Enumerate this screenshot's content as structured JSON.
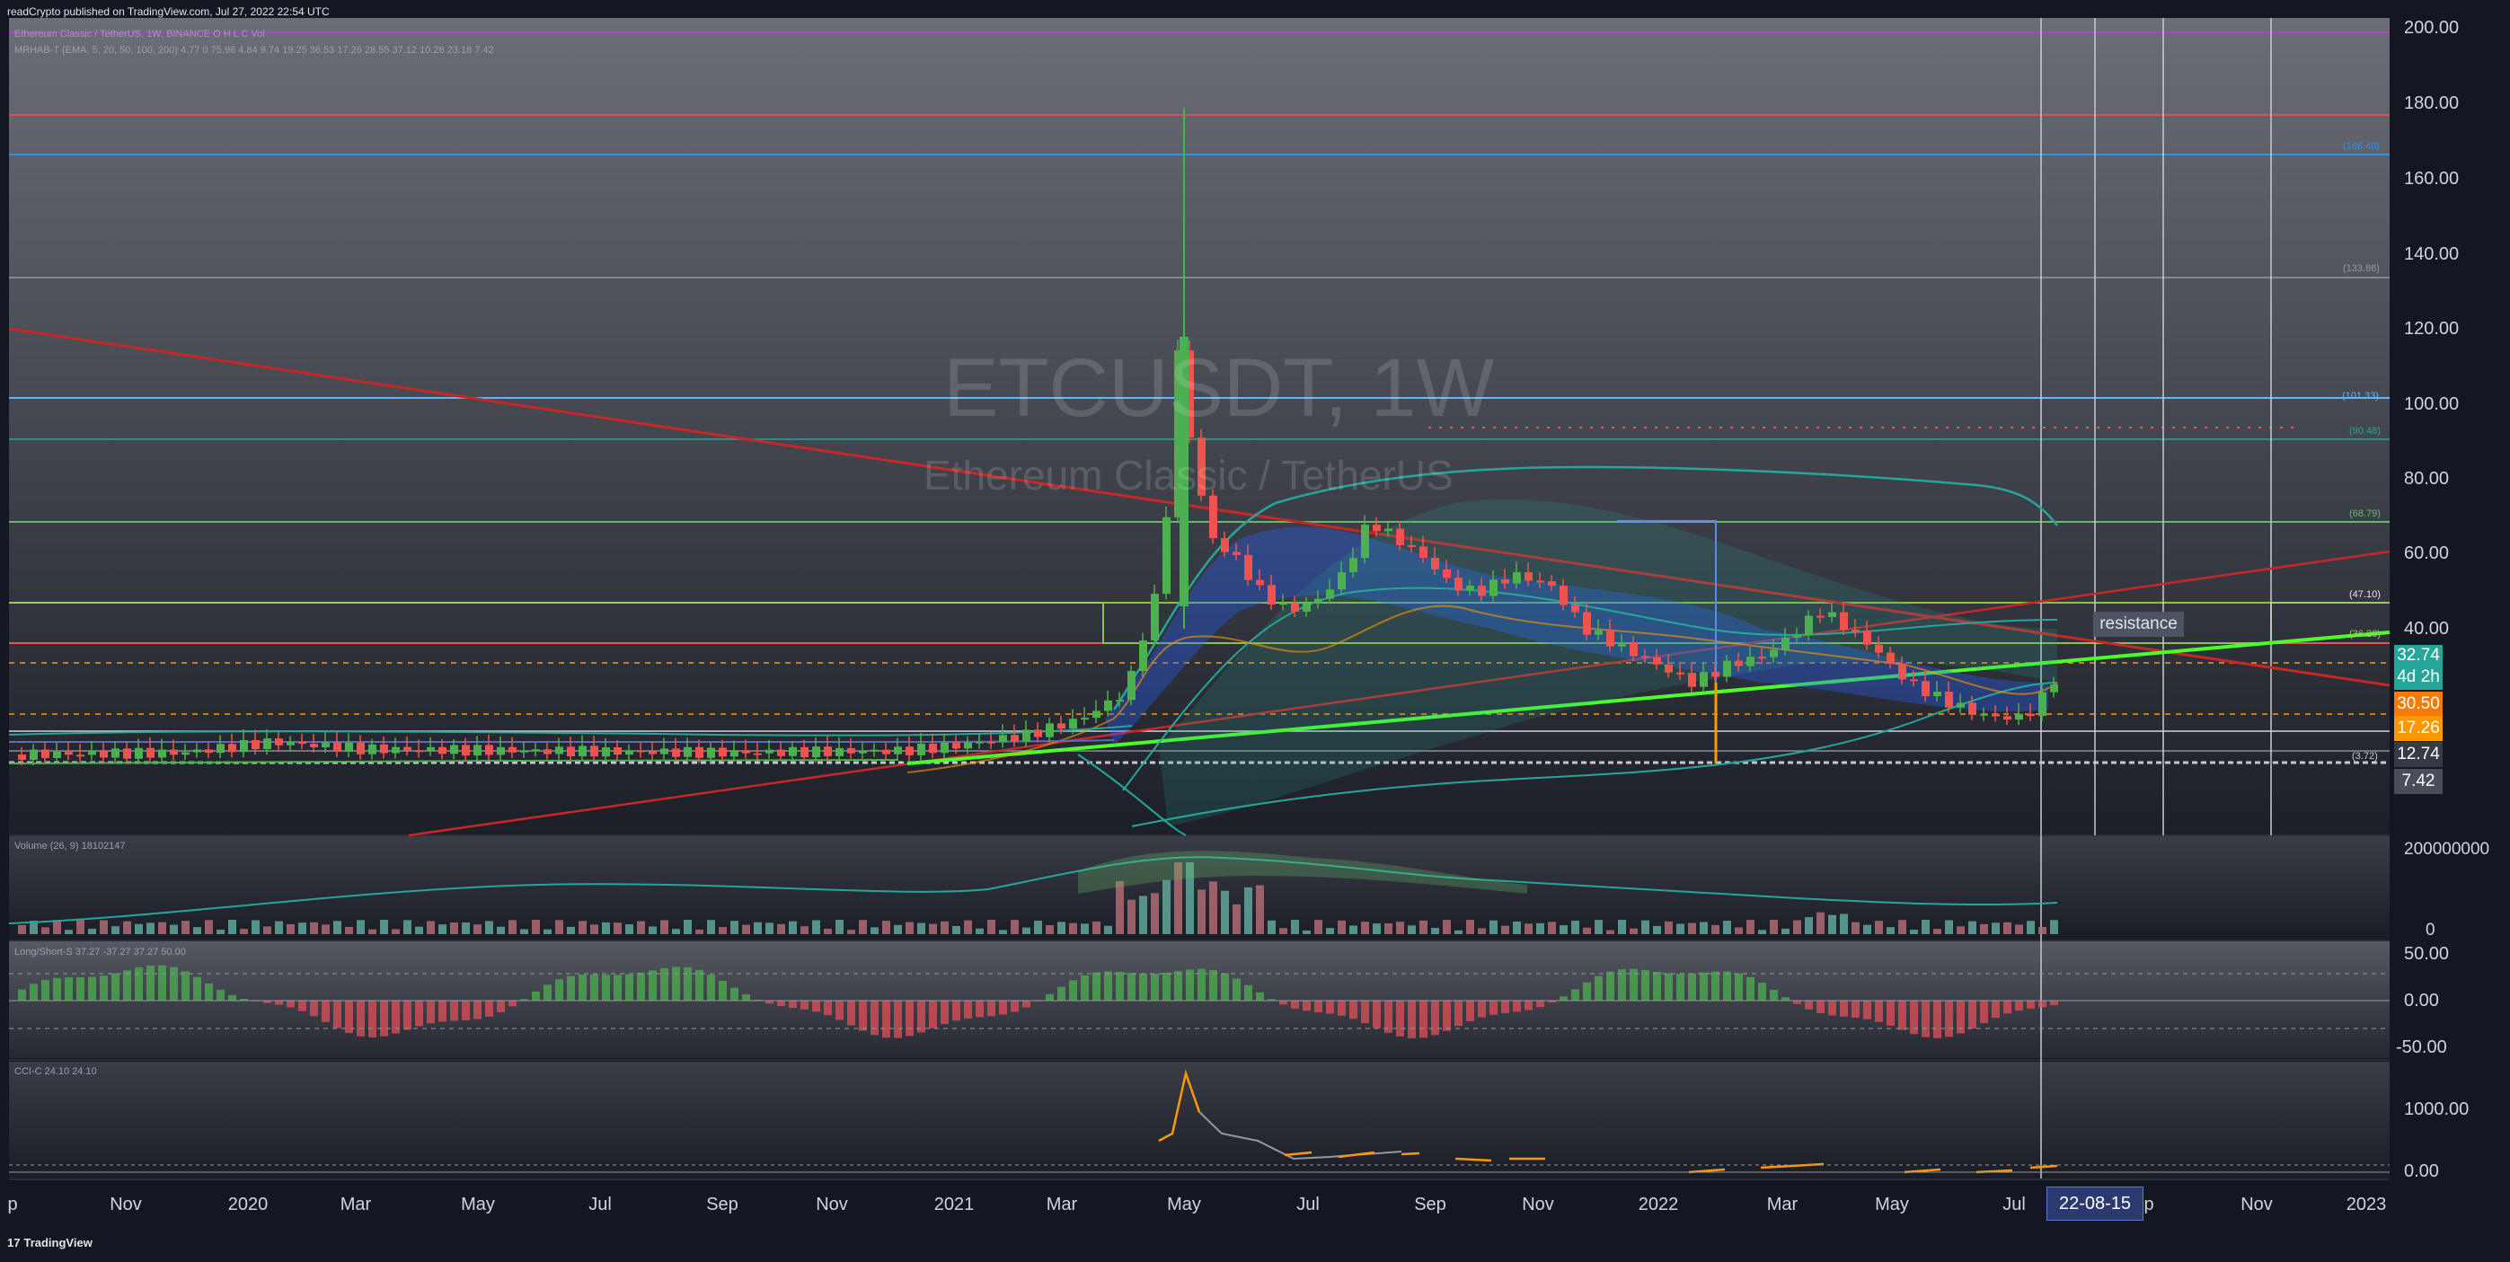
{
  "header": {
    "published": "readCrypto published on TradingView.com, Jul 27, 2022 22:54 UTC"
  },
  "symbol": {
    "ticker": "ETCUSDT, 1W",
    "name": "Ethereum Classic / TetherUS",
    "legend_line1": "Ethereum Classic / TetherUS, 1W, BINANCE  O  H  L  C  Vol",
    "legend_line2": "MRHAB-T (EMA, 5, 20, 50, 100, 200)  4.77  0  75.96  4.84  9.74  19.25  36.53  17.26  28.55  37.12  10.28  23.18  7.42"
  },
  "price_axis": {
    "labels": [
      "200.00",
      "180.00",
      "160.00",
      "140.00",
      "120.00",
      "100.00",
      "80.00",
      "60.00",
      "40.00"
    ],
    "current_price": "32.74",
    "countdown": "4d 2h",
    "tags": [
      {
        "value": "30.50",
        "color": "#f57c00"
      },
      {
        "value": "17.26",
        "color": "#ff9800"
      },
      {
        "value": "12.74",
        "color": "#363a45"
      },
      {
        "value": "7.42",
        "color": "#4a4e5a"
      }
    ],
    "level_labels": [
      "(101.33)",
      "(90.48)",
      "(68.79)",
      "(47.10)",
      "(36.26)",
      "(3.72)",
      "(166.40)",
      "(133.86)"
    ]
  },
  "annotations": {
    "resistance": "resistance"
  },
  "volume_pane": {
    "legend": "Volume (26, 9)  18102147",
    "labels": [
      "200000000",
      "0"
    ]
  },
  "longshort_pane": {
    "legend": "Long/Short-S  37.27  -37.27  37.27  50.00",
    "labels": [
      "50.00",
      "0.00",
      "-50.00"
    ]
  },
  "cci_pane": {
    "legend": "CCI-C  24.10  24.10",
    "labels": [
      "1000.00",
      "0.00"
    ]
  },
  "time_axis": {
    "labels": [
      "p",
      "Nov",
      "2020",
      "Mar",
      "May",
      "Jul",
      "Sep",
      "Nov",
      "2021",
      "Mar",
      "May",
      "Jul",
      "Sep",
      "Nov",
      "2022",
      "Mar",
      "May",
      "Jul",
      "p",
      "Nov",
      "2023"
    ],
    "crosshair_date": "22-08-15"
  },
  "footer": {
    "brand": "TradingView"
  },
  "colors": {
    "up": "#4caf50",
    "down": "#ef5350",
    "support_line": "#4cff2a",
    "trend_line": "#c62828",
    "price_tag": "#26a69a"
  }
}
